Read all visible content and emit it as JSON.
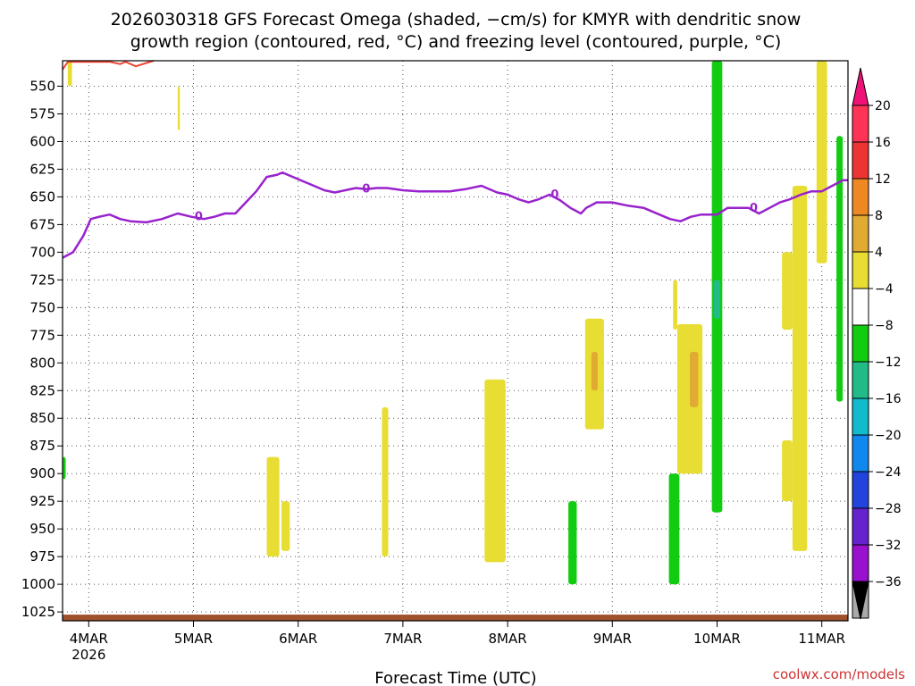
{
  "chart_data": {
    "type": "time-height cross section",
    "title": [
      "2026030318 GFS Forecast Omega (shaded, −cm/s) for KMYR with dendritic snow",
      "growth region (contoured, red, °C) and freezing level (contoured, purple, °C)"
    ],
    "xlabel": "Forecast Time (UTC)",
    "credit": "coolwx.com/models",
    "credit_color": "#cc3333",
    "x_ticks": [
      {
        "label": "4MAR",
        "sub": "2026",
        "day": 0
      },
      {
        "label": "5MAR",
        "day": 1
      },
      {
        "label": "6MAR",
        "day": 2
      },
      {
        "label": "7MAR",
        "day": 3
      },
      {
        "label": "8MAR",
        "day": 4
      },
      {
        "label": "9MAR",
        "day": 5
      },
      {
        "label": "10MAR",
        "day": 6
      },
      {
        "label": "11MAR",
        "day": 7
      }
    ],
    "xlim": [
      -0.25,
      7.25
    ],
    "y_ticks": [
      550,
      575,
      600,
      625,
      650,
      675,
      700,
      725,
      750,
      775,
      800,
      825,
      850,
      875,
      900,
      925,
      950,
      975,
      1000,
      1025
    ],
    "ylim": [
      527,
      1033
    ],
    "colorbar": {
      "labels": [
        "20",
        "16",
        "12",
        "8",
        "4",
        "−4",
        "−8",
        "−12",
        "−16",
        "−20",
        "−24",
        "−28",
        "−32",
        "−36"
      ],
      "colors": [
        "#ff3355",
        "#ee3333",
        "#ee8822",
        "#e0aa33",
        "#e8dd33",
        "#ffffff",
        "#11cc11",
        "#22bb88",
        "#11bbcc",
        "#1188ee",
        "#2244dd",
        "#6622cc",
        "#9911cc",
        "#aaaaaa"
      ],
      "top_color": "#ee1177",
      "bottom_color": "#000000"
    },
    "freezing_level": {
      "label": "0",
      "color": "#9922cc",
      "days": [
        -0.25,
        -0.15,
        -0.05,
        0.02,
        0.1,
        0.2,
        0.3,
        0.4,
        0.55,
        0.7,
        0.85,
        0.98,
        1.1,
        1.2,
        1.3,
        1.4,
        1.5,
        1.6,
        1.7,
        1.8,
        1.85,
        1.95,
        2.05,
        2.15,
        2.25,
        2.35,
        2.45,
        2.55,
        2.65,
        2.75,
        2.85,
        3.0,
        3.15,
        3.3,
        3.45,
        3.6,
        3.75,
        3.9,
        4.0,
        4.1,
        4.2,
        4.3,
        4.4,
        4.5,
        4.6,
        4.7,
        4.75,
        4.85,
        5.0,
        5.15,
        5.3,
        5.45,
        5.55,
        5.65,
        5.75,
        5.85,
        6.0,
        6.1,
        6.2,
        6.3,
        6.4,
        6.5,
        6.6,
        6.7,
        6.8,
        6.9,
        7.0,
        7.1,
        7.2,
        7.25
      ],
      "pressure": [
        705,
        700,
        685,
        670,
        668,
        666,
        670,
        672,
        673,
        670,
        665,
        668,
        670,
        668,
        665,
        665,
        655,
        645,
        632,
        630,
        628,
        632,
        636,
        640,
        644,
        646,
        644,
        642,
        643,
        642,
        642,
        644,
        645,
        645,
        645,
        643,
        640,
        646,
        648,
        652,
        655,
        652,
        648,
        653,
        660,
        665,
        660,
        655,
        655,
        658,
        660,
        666,
        670,
        672,
        668,
        666,
        666,
        660,
        660,
        660,
        665,
        660,
        655,
        652,
        648,
        645,
        645,
        640,
        635,
        635
      ]
    },
    "dendritic_growth_top": {
      "color": "#ee4433",
      "days": [
        -0.25,
        -0.2,
        0.2,
        0.3,
        0.35,
        0.45,
        0.55,
        0.62
      ],
      "pressure": [
        535,
        528,
        528,
        530,
        528,
        532,
        529,
        527
      ]
    },
    "surface": {
      "color": "#a0522d",
      "pressure_top": 1025
    },
    "omega_regions": [
      {
        "category": "4",
        "day0": 0.85,
        "day1": 0.87,
        "p0": 550,
        "p1": 590
      },
      {
        "category": "4",
        "day0": -0.2,
        "day1": -0.16,
        "p0": 527,
        "p1": 550
      },
      {
        "category": "4",
        "day0": 1.7,
        "day1": 1.82,
        "p0": 885,
        "p1": 975
      },
      {
        "category": "4",
        "day0": 1.84,
        "day1": 1.92,
        "p0": 925,
        "p1": 970
      },
      {
        "category": "4",
        "day0": 2.8,
        "day1": 2.86,
        "p0": 840,
        "p1": 975
      },
      {
        "category": "4",
        "day0": 3.78,
        "day1": 3.98,
        "p0": 815,
        "p1": 980
      },
      {
        "category": "4",
        "day0": 4.74,
        "day1": 4.92,
        "p0": 760,
        "p1": 860
      },
      {
        "category": "8",
        "day0": 4.8,
        "day1": 4.86,
        "p0": 790,
        "p1": 825
      },
      {
        "category": "4",
        "day0": 5.58,
        "day1": 5.62,
        "p0": 725,
        "p1": 770
      },
      {
        "category": "4",
        "day0": 5.62,
        "day1": 5.86,
        "p0": 765,
        "p1": 900
      },
      {
        "category": "8",
        "day0": 5.74,
        "day1": 5.82,
        "p0": 790,
        "p1": 840
      },
      {
        "category": "4",
        "day0": 6.62,
        "day1": 6.72,
        "p0": 700,
        "p1": 770
      },
      {
        "category": "4",
        "day0": 6.62,
        "day1": 6.72,
        "p0": 870,
        "p1": 925
      },
      {
        "category": "4",
        "day0": 6.72,
        "day1": 6.86,
        "p0": 640,
        "p1": 970
      },
      {
        "category": "4",
        "day0": 6.95,
        "day1": 7.05,
        "p0": 527,
        "p1": 710
      },
      {
        "category": "-4",
        "day0": 4.58,
        "day1": 4.66,
        "p0": 925,
        "p1": 1000
      },
      {
        "category": "-4",
        "day0": 5.54,
        "day1": 5.64,
        "p0": 900,
        "p1": 1000
      },
      {
        "category": "-4",
        "day0": 5.95,
        "day1": 6.05,
        "p0": 527,
        "p1": 935
      },
      {
        "category": "-8",
        "day0": 5.97,
        "day1": 6.03,
        "p0": 725,
        "p1": 760
      },
      {
        "category": "-4",
        "day0": 7.14,
        "day1": 7.2,
        "p0": 595,
        "p1": 835
      },
      {
        "category": "-4",
        "day0": -0.25,
        "day1": -0.22,
        "p0": 885,
        "p1": 905
      }
    ]
  }
}
